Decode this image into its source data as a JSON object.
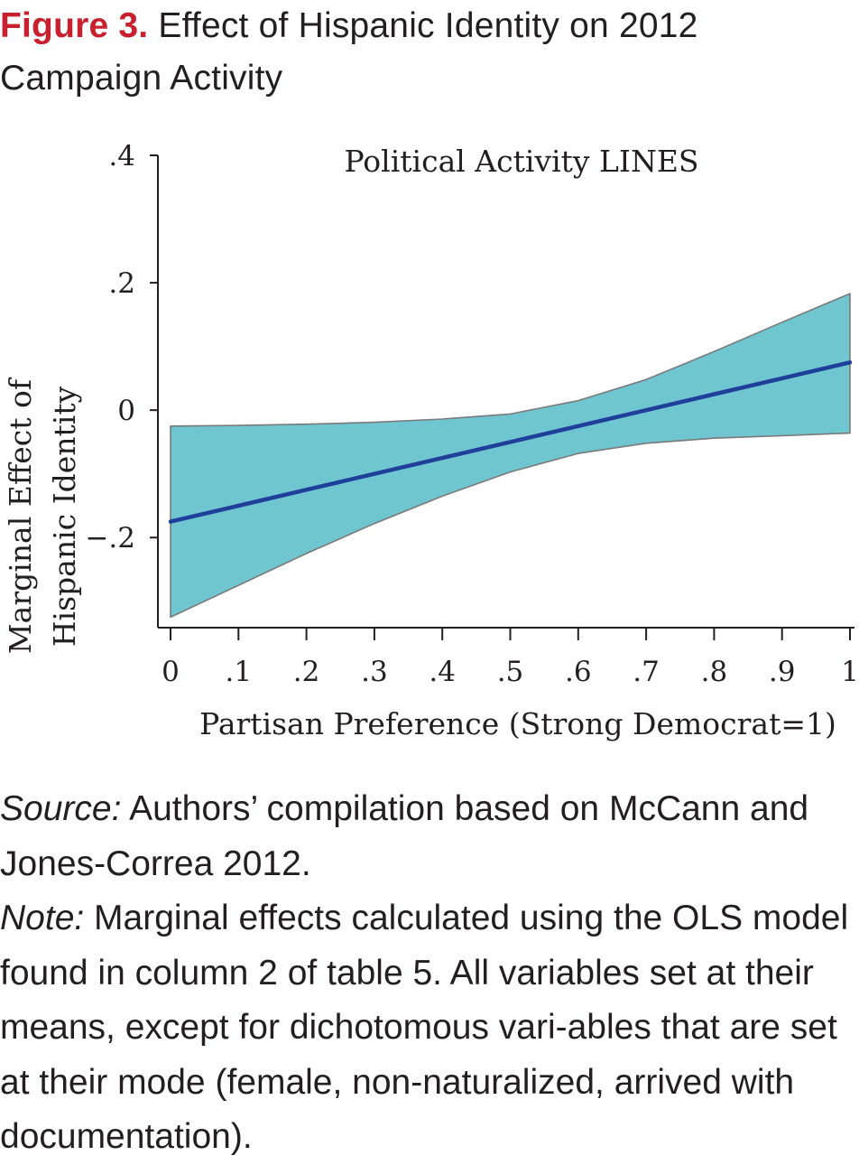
{
  "figure": {
    "label": "Figure 3.",
    "title": "Effect of Hispanic Identity on 2012 Campaign Activity"
  },
  "chart_data": {
    "type": "line",
    "panel_title": "Political Activity LINES",
    "xlabel": "Partisan Preference (Strong Democrat=1)",
    "ylabel_lines": [
      "Marginal Effect of",
      "Hispanic Identity"
    ],
    "xlim": [
      0,
      1
    ],
    "ylim": [
      -0.34,
      0.4
    ],
    "x_ticks": [
      {
        "value": 0,
        "label": "0"
      },
      {
        "value": 0.1,
        "label": ".1"
      },
      {
        "value": 0.2,
        "label": ".2"
      },
      {
        "value": 0.3,
        "label": ".3"
      },
      {
        "value": 0.4,
        "label": ".4"
      },
      {
        "value": 0.5,
        "label": ".5"
      },
      {
        "value": 0.6,
        "label": ".6"
      },
      {
        "value": 0.7,
        "label": ".7"
      },
      {
        "value": 0.8,
        "label": ".8"
      },
      {
        "value": 0.9,
        "label": ".9"
      },
      {
        "value": 1,
        "label": "1"
      }
    ],
    "y_ticks": [
      {
        "value": 0.4,
        "label": ".4"
      },
      {
        "value": 0.2,
        "label": ".2"
      },
      {
        "value": 0,
        "label": "0"
      },
      {
        "value": -0.2,
        "label": "−.2"
      }
    ],
    "grid": false,
    "line_color": "#1f3f9a",
    "band_color": "#6fc6d0",
    "band_edge_color": "#7a7a7a",
    "series": [
      {
        "x": [
          0,
          0.1,
          0.2,
          0.3,
          0.4,
          0.5,
          0.6,
          0.7,
          0.8,
          0.9,
          1
        ],
        "values": [
          -0.175,
          -0.15,
          -0.125,
          -0.1,
          -0.075,
          -0.05,
          -0.025,
          0.0,
          0.025,
          0.05,
          0.075
        ],
        "lower": [
          -0.325,
          -0.275,
          -0.225,
          -0.178,
          -0.135,
          -0.097,
          -0.068,
          -0.052,
          -0.044,
          -0.04,
          -0.036
        ],
        "upper": [
          -0.025,
          -0.024,
          -0.022,
          -0.019,
          -0.014,
          -0.006,
          0.015,
          0.048,
          0.092,
          0.138,
          0.183
        ]
      }
    ]
  },
  "notes": {
    "source_label": "Source:",
    "source_text": " Authors’ compilation based on McCann and Jones-Correa 2012.",
    "note_label": "Note:",
    "note_text": " Marginal effects calculated using the OLS model found in column 2 of table 5. All variables set at their means, except for dichotomous vari-ables that are set at their mode (female, non-naturalized, arrived with documentation)."
  }
}
